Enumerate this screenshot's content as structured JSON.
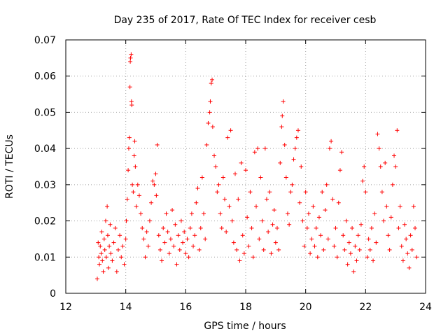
{
  "chart_data": {
    "type": "scatter",
    "title": "Day 235 of 2017, Rate Of TEC Index for receiver cesb",
    "xlabel": "GPS time / hours",
    "ylabel": "ROTI / TECUs",
    "xlim": [
      12,
      24
    ],
    "ylim": [
      0,
      0.07
    ],
    "x_ticks": [
      "12",
      "14",
      "16",
      "18",
      "20",
      "22",
      "24"
    ],
    "y_ticks": [
      "0",
      "0.01",
      "0.02",
      "0.03",
      "0.04",
      "0.05",
      "0.06",
      "0.07"
    ],
    "grid": true,
    "marker": "+",
    "marker_color": "#ff0000",
    "series": [
      {
        "points": [
          [
            13.05,
            0.004
          ],
          [
            13.08,
            0.014
          ],
          [
            13.1,
            0.01
          ],
          [
            13.12,
            0.008
          ],
          [
            13.15,
            0.013
          ],
          [
            13.18,
            0.011
          ],
          [
            13.2,
            0.017
          ],
          [
            13.22,
            0.009
          ],
          [
            13.25,
            0.006
          ],
          [
            13.28,
            0.015
          ],
          [
            13.3,
            0.012
          ],
          [
            13.33,
            0.02
          ],
          [
            13.35,
            0.01
          ],
          [
            13.38,
            0.024
          ],
          [
            13.4,
            0.016
          ],
          [
            13.42,
            0.007
          ],
          [
            13.45,
            0.013
          ],
          [
            13.48,
            0.019
          ],
          [
            13.5,
            0.011
          ],
          [
            13.55,
            0.009
          ],
          [
            13.6,
            0.014
          ],
          [
            13.65,
            0.018
          ],
          [
            13.7,
            0.006
          ],
          [
            13.75,
            0.012
          ],
          [
            13.8,
            0.016
          ],
          [
            13.85,
            0.01
          ],
          [
            13.9,
            0.013
          ],
          [
            13.95,
            0.008
          ],
          [
            14.0,
            0.015
          ],
          [
            14.02,
            0.02
          ],
          [
            14.05,
            0.026
          ],
          [
            14.08,
            0.034
          ],
          [
            14.1,
            0.04
          ],
          [
            14.12,
            0.043
          ],
          [
            14.14,
            0.057
          ],
          [
            14.15,
            0.064
          ],
          [
            14.16,
            0.065
          ],
          [
            14.18,
            0.066
          ],
          [
            14.19,
            0.053
          ],
          [
            14.2,
            0.052
          ],
          [
            14.22,
            0.03
          ],
          [
            14.25,
            0.028
          ],
          [
            14.28,
            0.038
          ],
          [
            14.3,
            0.042
          ],
          [
            14.32,
            0.035
          ],
          [
            14.35,
            0.024
          ],
          [
            14.4,
            0.03
          ],
          [
            14.45,
            0.027
          ],
          [
            14.5,
            0.022
          ],
          [
            14.55,
            0.018
          ],
          [
            14.6,
            0.015
          ],
          [
            14.65,
            0.01
          ],
          [
            14.7,
            0.017
          ],
          [
            14.75,
            0.013
          ],
          [
            14.8,
            0.02
          ],
          [
            14.85,
            0.025
          ],
          [
            14.9,
            0.031
          ],
          [
            14.95,
            0.03
          ],
          [
            15.0,
            0.033
          ],
          [
            15.02,
            0.027
          ],
          [
            15.05,
            0.041
          ],
          [
            15.1,
            0.016
          ],
          [
            15.15,
            0.012
          ],
          [
            15.2,
            0.009
          ],
          [
            15.25,
            0.018
          ],
          [
            15.3,
            0.014
          ],
          [
            15.35,
            0.022
          ],
          [
            15.4,
            0.017
          ],
          [
            15.45,
            0.011
          ],
          [
            15.5,
            0.015
          ],
          [
            15.55,
            0.023
          ],
          [
            15.6,
            0.013
          ],
          [
            15.65,
            0.019
          ],
          [
            15.7,
            0.008
          ],
          [
            15.75,
            0.016
          ],
          [
            15.8,
            0.012
          ],
          [
            15.85,
            0.02
          ],
          [
            15.9,
            0.014
          ],
          [
            15.95,
            0.017
          ],
          [
            16.0,
            0.011
          ],
          [
            16.05,
            0.015
          ],
          [
            16.1,
            0.01
          ],
          [
            16.15,
            0.018
          ],
          [
            16.2,
            0.022
          ],
          [
            16.25,
            0.013
          ],
          [
            16.3,
            0.016
          ],
          [
            16.35,
            0.025
          ],
          [
            16.4,
            0.029
          ],
          [
            16.45,
            0.012
          ],
          [
            16.5,
            0.018
          ],
          [
            16.55,
            0.032
          ],
          [
            16.6,
            0.022
          ],
          [
            16.65,
            0.015
          ],
          [
            16.7,
            0.041
          ],
          [
            16.75,
            0.047
          ],
          [
            16.8,
            0.05
          ],
          [
            16.82,
            0.053
          ],
          [
            16.85,
            0.058
          ],
          [
            16.88,
            0.059
          ],
          [
            16.9,
            0.046
          ],
          [
            16.95,
            0.038
          ],
          [
            17.0,
            0.035
          ],
          [
            17.05,
            0.028
          ],
          [
            17.1,
            0.03
          ],
          [
            17.15,
            0.022
          ],
          [
            17.2,
            0.018
          ],
          [
            17.25,
            0.032
          ],
          [
            17.3,
            0.026
          ],
          [
            17.35,
            0.017
          ],
          [
            17.4,
            0.043
          ],
          [
            17.45,
            0.024
          ],
          [
            17.5,
            0.045
          ],
          [
            17.55,
            0.02
          ],
          [
            17.6,
            0.014
          ],
          [
            17.65,
            0.033
          ],
          [
            17.7,
            0.012
          ],
          [
            17.75,
            0.026
          ],
          [
            17.8,
            0.009
          ],
          [
            17.85,
            0.036
          ],
          [
            17.9,
            0.016
          ],
          [
            17.95,
            0.011
          ],
          [
            18.0,
            0.034
          ],
          [
            18.05,
            0.021
          ],
          [
            18.1,
            0.013
          ],
          [
            18.15,
            0.028
          ],
          [
            18.2,
            0.018
          ],
          [
            18.25,
            0.01
          ],
          [
            18.3,
            0.039
          ],
          [
            18.35,
            0.024
          ],
          [
            18.4,
            0.04
          ],
          [
            18.45,
            0.015
          ],
          [
            18.5,
            0.032
          ],
          [
            18.55,
            0.02
          ],
          [
            18.6,
            0.012
          ],
          [
            18.65,
            0.04
          ],
          [
            18.7,
            0.026
          ],
          [
            18.75,
            0.017
          ],
          [
            18.8,
            0.028
          ],
          [
            18.85,
            0.011
          ],
          [
            18.9,
            0.019
          ],
          [
            18.95,
            0.023
          ],
          [
            19.0,
            0.014
          ],
          [
            19.05,
            0.018
          ],
          [
            19.1,
            0.012
          ],
          [
            19.15,
            0.036
          ],
          [
            19.2,
            0.046
          ],
          [
            19.22,
            0.049
          ],
          [
            19.25,
            0.053
          ],
          [
            19.3,
            0.041
          ],
          [
            19.35,
            0.032
          ],
          [
            19.4,
            0.022
          ],
          [
            19.45,
            0.019
          ],
          [
            19.5,
            0.028
          ],
          [
            19.55,
            0.03
          ],
          [
            19.6,
            0.037
          ],
          [
            19.65,
            0.04
          ],
          [
            19.7,
            0.043
          ],
          [
            19.75,
            0.045
          ],
          [
            19.8,
            0.025
          ],
          [
            19.85,
            0.035
          ],
          [
            19.9,
            0.02
          ],
          [
            19.95,
            0.013
          ],
          [
            20.0,
            0.028
          ],
          [
            20.05,
            0.018
          ],
          [
            20.1,
            0.022
          ],
          [
            20.15,
            0.011
          ],
          [
            20.2,
            0.015
          ],
          [
            20.25,
            0.024
          ],
          [
            20.3,
            0.013
          ],
          [
            20.35,
            0.018
          ],
          [
            20.4,
            0.01
          ],
          [
            20.45,
            0.021
          ],
          [
            20.5,
            0.016
          ],
          [
            20.55,
            0.028
          ],
          [
            20.6,
            0.012
          ],
          [
            20.65,
            0.023
          ],
          [
            20.7,
            0.03
          ],
          [
            20.75,
            0.015
          ],
          [
            20.8,
            0.04
          ],
          [
            20.85,
            0.042
          ],
          [
            20.9,
            0.026
          ],
          [
            20.95,
            0.013
          ],
          [
            21.0,
            0.018
          ],
          [
            21.05,
            0.01
          ],
          [
            21.1,
            0.025
          ],
          [
            21.15,
            0.034
          ],
          [
            21.2,
            0.039
          ],
          [
            21.25,
            0.016
          ],
          [
            21.3,
            0.012
          ],
          [
            21.35,
            0.02
          ],
          [
            21.4,
            0.008
          ],
          [
            21.45,
            0.014
          ],
          [
            21.5,
            0.011
          ],
          [
            21.55,
            0.018
          ],
          [
            21.6,
            0.006
          ],
          [
            21.65,
            0.013
          ],
          [
            21.7,
            0.009
          ],
          [
            21.75,
            0.016
          ],
          [
            21.8,
            0.012
          ],
          [
            21.85,
            0.019
          ],
          [
            21.9,
            0.031
          ],
          [
            21.95,
            0.035
          ],
          [
            22.0,
            0.028
          ],
          [
            22.05,
            0.01
          ],
          [
            22.1,
            0.015
          ],
          [
            22.15,
            0.012
          ],
          [
            22.2,
            0.018
          ],
          [
            22.25,
            0.009
          ],
          [
            22.3,
            0.022
          ],
          [
            22.35,
            0.014
          ],
          [
            22.4,
            0.044
          ],
          [
            22.45,
            0.04
          ],
          [
            22.5,
            0.035
          ],
          [
            22.55,
            0.028
          ],
          [
            22.6,
            0.02
          ],
          [
            22.65,
            0.036
          ],
          [
            22.7,
            0.024
          ],
          [
            22.75,
            0.016
          ],
          [
            22.8,
            0.012
          ],
          [
            22.85,
            0.021
          ],
          [
            22.9,
            0.03
          ],
          [
            22.95,
            0.038
          ],
          [
            23.0,
            0.035
          ],
          [
            23.05,
            0.045
          ],
          [
            23.1,
            0.018
          ],
          [
            23.15,
            0.024
          ],
          [
            23.2,
            0.013
          ],
          [
            23.25,
            0.009
          ],
          [
            23.3,
            0.019
          ],
          [
            23.35,
            0.015
          ],
          [
            23.4,
            0.011
          ],
          [
            23.45,
            0.007
          ],
          [
            23.5,
            0.016
          ],
          [
            23.55,
            0.012
          ],
          [
            23.6,
            0.024
          ],
          [
            23.65,
            0.018
          ],
          [
            23.7,
            0.01
          ]
        ]
      }
    ]
  }
}
